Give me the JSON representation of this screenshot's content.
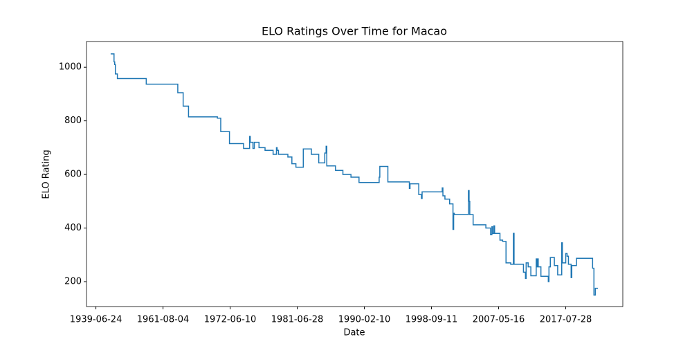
{
  "chart_data": {
    "type": "line",
    "title": "ELO Ratings Over Time for Macao",
    "x_label": "Date",
    "y_label": "ELO Rating",
    "drawstyle": "steps-post",
    "grid": false,
    "series": [
      {
        "name": "Macao",
        "color": "#1f77b4",
        "x": [
          22,
          27,
          28,
          29,
          32,
          75,
          122,
          130,
          138,
          181,
          186,
          199,
          220,
          229,
          230,
          234,
          236,
          243,
          252,
          264,
          269,
          270,
          272,
          286,
          292,
          298,
          309,
          321,
          332,
          341,
          343,
          344,
          357,
          368,
          380,
          392,
          422,
          423,
          435,
          467,
          468,
          481,
          485,
          486,
          516,
          517,
          520,
          527,
          532,
          533,
          534,
          555,
          556,
          557,
          562,
          581,
          588,
          590,
          591,
          593,
          594,
          602,
          606,
          611,
          618,
          622,
          623,
          637,
          640,
          641,
          644,
          648,
          656,
          657,
          658,
          659,
          663,
          674,
          675,
          677,
          683,
          688,
          694,
          695,
          700,
          702,
          704,
          708,
          709,
          716,
          740,
          742,
          744,
          748
        ],
        "values": [
          1050,
          1020,
          1010,
          975,
          958,
          937,
          905,
          855,
          815,
          810,
          760,
          715,
          697,
          742,
          720,
          697,
          720,
          700,
          690,
          675,
          700,
          690,
          675,
          665,
          640,
          627,
          695,
          675,
          643,
          680,
          705,
          632,
          615,
          600,
          590,
          570,
          590,
          630,
          572,
          548,
          565,
          525,
          510,
          535,
          550,
          520,
          508,
          490,
          395,
          455,
          450,
          540,
          500,
          450,
          412,
          400,
          375,
          405,
          380,
          408,
          380,
          355,
          350,
          270,
          265,
          380,
          265,
          235,
          212,
          270,
          255,
          222,
          285,
          255,
          285,
          255,
          220,
          200,
          255,
          290,
          260,
          225,
          345,
          270,
          305,
          295,
          265,
          215,
          260,
          287,
          250,
          150,
          175,
          175
        ]
      }
    ],
    "xlim": [
      -14,
      785
    ],
    "xticks": [
      {
        "value": 0,
        "label": "1939-06-24"
      },
      {
        "value": 100,
        "label": "1961-08-04"
      },
      {
        "value": 200,
        "label": "1972-06-10"
      },
      {
        "value": 300,
        "label": "1981-06-28"
      },
      {
        "value": 400,
        "label": "1990-02-10"
      },
      {
        "value": 500,
        "label": "1998-09-11"
      },
      {
        "value": 600,
        "label": "2007-05-16"
      },
      {
        "value": 700,
        "label": "2017-07-28"
      }
    ],
    "ylim": [
      107,
      1096
    ],
    "yticks": [
      200,
      400,
      600,
      800,
      1000
    ]
  }
}
